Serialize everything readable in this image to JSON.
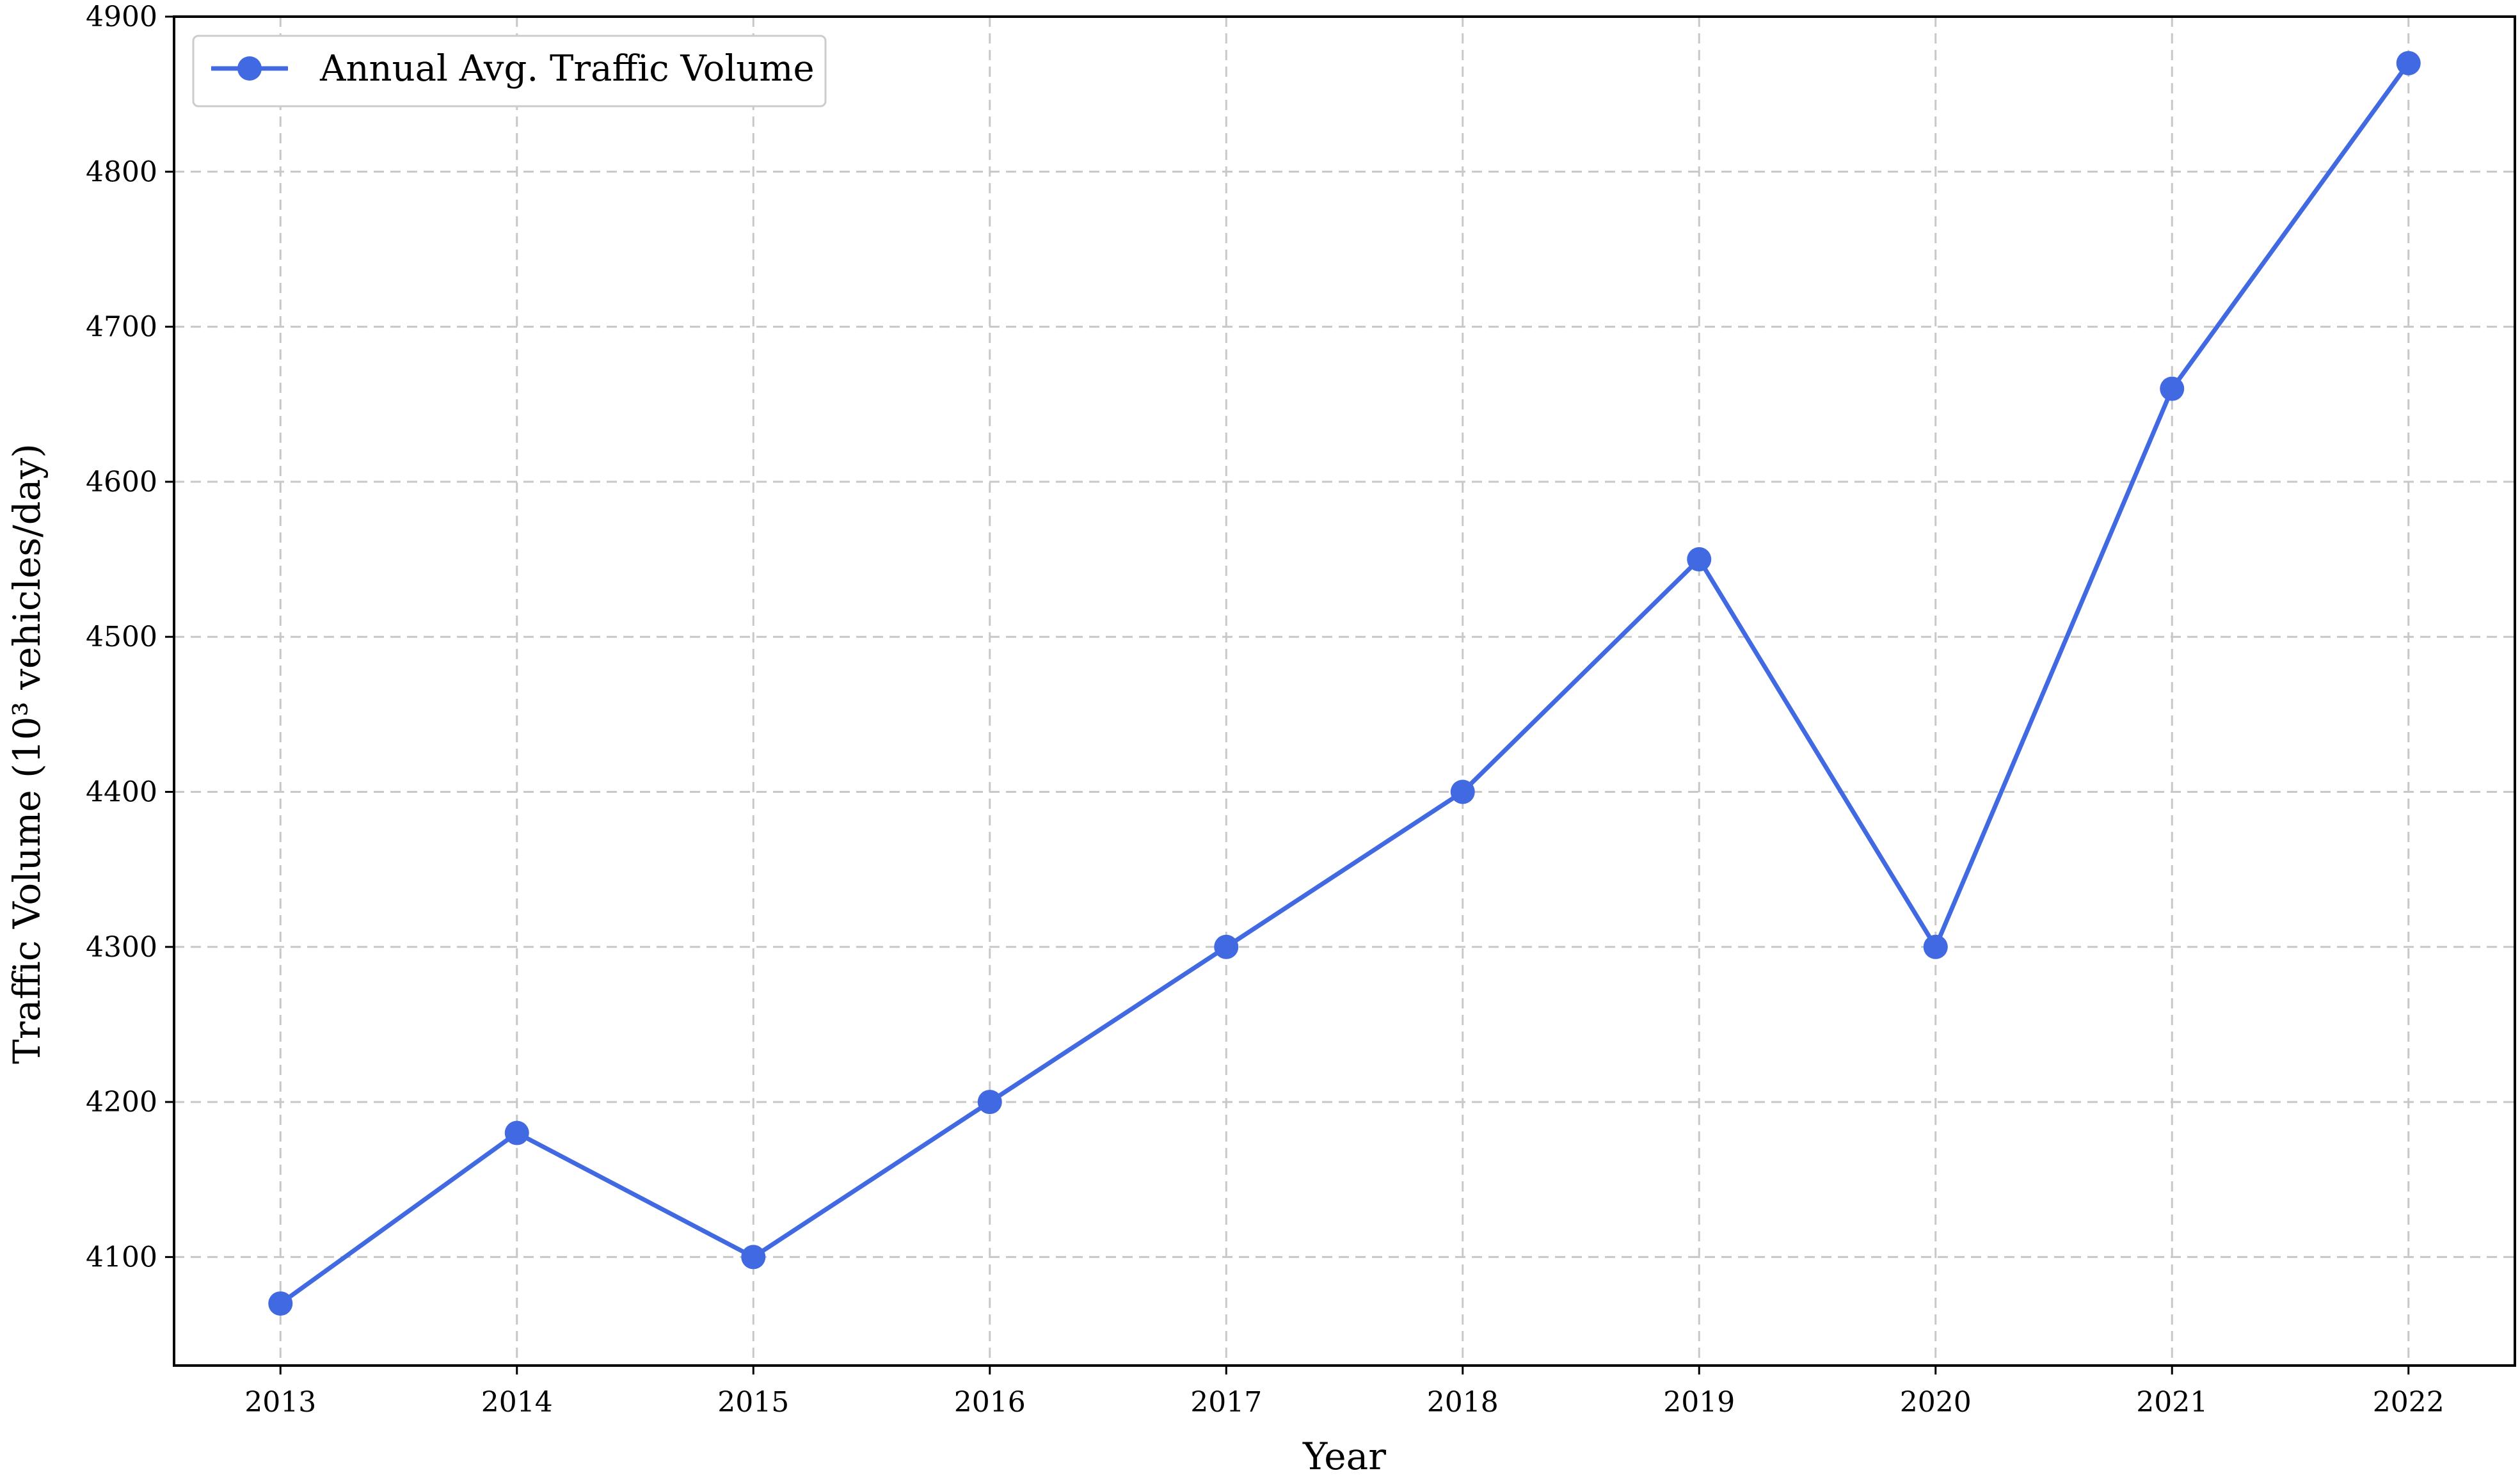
{
  "chart_data": {
    "type": "line",
    "title": "",
    "xlabel": "Year",
    "ylabel": "Traffic Volume (10³ vehicles/day)",
    "x": [
      2013,
      2014,
      2015,
      2016,
      2017,
      2018,
      2019,
      2020,
      2021,
      2022
    ],
    "series": [
      {
        "name": "Annual Avg. Traffic Volume",
        "values": [
          4070,
          4180,
          4100,
          4200,
          4300,
          4400,
          4550,
          4300,
          4660,
          4870
        ],
        "color": "#4169e1",
        "marker": "circle"
      }
    ],
    "xlim": [
      2012.55,
      2022.45
    ],
    "ylim": [
      4030,
      4900
    ],
    "yticks": [
      4100,
      4200,
      4300,
      4400,
      4500,
      4600,
      4700,
      4800,
      4900
    ],
    "grid": true,
    "legend_position": "top-left"
  }
}
